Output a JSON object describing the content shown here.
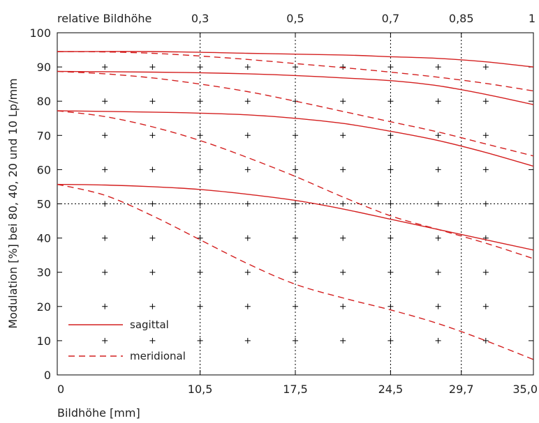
{
  "chart_data": {
    "type": "line",
    "xlabel": "Bildhöhe [mm]",
    "ylabel": "Modulation [%] bei 80, 40, 20 und 10 Lp/mm",
    "top_axis_label": "relative Bildhöhe",
    "xlim": [
      0,
      35
    ],
    "ylim": [
      0,
      100
    ],
    "x_ticks": [
      0,
      10.5,
      17.5,
      24.5,
      29.7,
      35.0
    ],
    "x_tick_labels": [
      "0",
      "10,5",
      "17,5",
      "24,5",
      "29,7",
      "35,0"
    ],
    "y_ticks": [
      0,
      10,
      20,
      30,
      40,
      50,
      60,
      70,
      80,
      90,
      100
    ],
    "y_tick_labels": [
      "0",
      "10",
      "20",
      "30",
      "40",
      "50",
      "60",
      "70",
      "80",
      "90",
      "100"
    ],
    "top_ticks": [
      10.5,
      17.5,
      24.5,
      29.7,
      35.0
    ],
    "top_tick_labels": [
      "0,3",
      "0,5",
      "0,7",
      "0,85",
      "1"
    ],
    "vertical_dotted_lines_x": [
      10.5,
      17.5,
      24.5,
      29.7
    ],
    "horizontal_dotted_line_y": 50,
    "grid_crosses_x": [
      3.5,
      7,
      10.5,
      14,
      17.5,
      21,
      24.5,
      28,
      31.5
    ],
    "grid_crosses_y": [
      10,
      20,
      30,
      40,
      50,
      60,
      70,
      80,
      90
    ],
    "legend": {
      "placement": "bottom-left",
      "entries": [
        {
          "label": "sagittal",
          "style": "solid"
        },
        {
          "label": "meridional",
          "style": "dashed"
        }
      ]
    },
    "line_color": "#d42020",
    "series": [
      {
        "style": "solid",
        "x": [
          0,
          7,
          14,
          21,
          24.5,
          28,
          31.5,
          35
        ],
        "y": [
          94.5,
          94.5,
          94.0,
          93.5,
          93.0,
          92.5,
          91.5,
          90.0
        ]
      },
      {
        "style": "dashed",
        "x": [
          0,
          3.5,
          7,
          10.5,
          14,
          17.5,
          21,
          24.5,
          28,
          31.5,
          35
        ],
        "y": [
          94.5,
          94.4,
          94.0,
          93.2,
          92.2,
          91.0,
          89.8,
          88.5,
          87.0,
          85.2,
          83.0
        ]
      },
      {
        "style": "solid",
        "x": [
          0,
          7,
          10.5,
          14,
          17.5,
          21,
          24.5,
          28,
          31.5,
          35
        ],
        "y": [
          88.7,
          88.5,
          88.3,
          88.0,
          87.5,
          86.8,
          86.0,
          84.5,
          82.0,
          79.0
        ]
      },
      {
        "style": "dashed",
        "x": [
          0,
          3.5,
          7,
          10.5,
          14,
          17.5,
          21,
          24.5,
          28,
          31.5,
          35
        ],
        "y": [
          88.7,
          88.0,
          86.8,
          85.0,
          82.8,
          80.0,
          77.0,
          74.0,
          71.0,
          67.5,
          64.0
        ]
      },
      {
        "style": "solid",
        "x": [
          0,
          7,
          10.5,
          14,
          17.5,
          21,
          24.5,
          28,
          31.5,
          35
        ],
        "y": [
          77.2,
          76.8,
          76.5,
          76.0,
          75.0,
          73.5,
          71.2,
          68.5,
          65.0,
          61.0
        ]
      },
      {
        "style": "dashed",
        "x": [
          0,
          3.5,
          7,
          10.5,
          14,
          17.5,
          21,
          24.5,
          28,
          31.5,
          35
        ],
        "y": [
          77.2,
          75.5,
          72.5,
          68.5,
          63.5,
          58.0,
          52.0,
          46.5,
          42.5,
          38.5,
          34.0
        ]
      },
      {
        "style": "solid",
        "x": [
          0,
          3.5,
          7,
          10.5,
          14,
          17.5,
          21,
          24.5,
          28,
          31.5,
          35
        ],
        "y": [
          55.7,
          55.5,
          55.0,
          54.2,
          52.8,
          51.0,
          48.5,
          45.5,
          42.5,
          39.5,
          36.5
        ]
      },
      {
        "style": "dashed",
        "x": [
          0,
          3.5,
          7,
          10.5,
          14,
          17.5,
          21,
          24.5,
          28,
          31.5,
          35
        ],
        "y": [
          55.7,
          52.5,
          46.5,
          39.5,
          32.5,
          26.5,
          22.5,
          19.0,
          15.0,
          10.0,
          4.5
        ]
      }
    ]
  }
}
